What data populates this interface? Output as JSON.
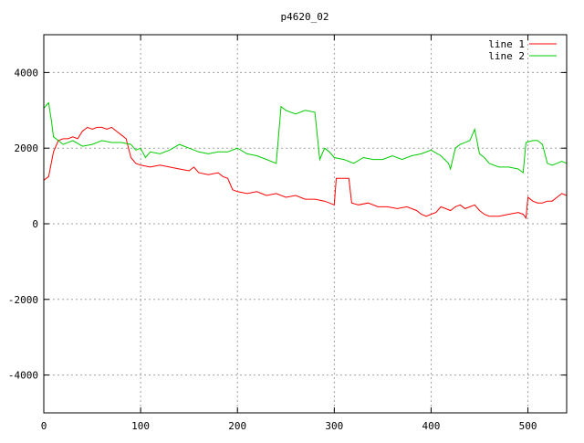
{
  "chart_data": {
    "type": "line",
    "title": "p4620_02",
    "xlabel": "",
    "ylabel": "",
    "xlim": [
      0,
      540
    ],
    "ylim": [
      -5000,
      5000
    ],
    "x_ticks": [
      0,
      100,
      200,
      300,
      400,
      500
    ],
    "y_ticks": [
      -4000,
      -2000,
      0,
      2000,
      4000
    ],
    "grid": true,
    "legend_position": "top-right",
    "series": [
      {
        "name": "line 1",
        "color": "#ff0000",
        "points": [
          [
            0,
            1150
          ],
          [
            5,
            1250
          ],
          [
            10,
            1900
          ],
          [
            15,
            2200
          ],
          [
            20,
            2250
          ],
          [
            25,
            2250
          ],
          [
            30,
            2300
          ],
          [
            35,
            2250
          ],
          [
            40,
            2450
          ],
          [
            45,
            2550
          ],
          [
            50,
            2500
          ],
          [
            55,
            2550
          ],
          [
            60,
            2550
          ],
          [
            65,
            2500
          ],
          [
            70,
            2550
          ],
          [
            75,
            2450
          ],
          [
            80,
            2350
          ],
          [
            85,
            2250
          ],
          [
            90,
            1750
          ],
          [
            95,
            1600
          ],
          [
            100,
            1550
          ],
          [
            110,
            1500
          ],
          [
            120,
            1550
          ],
          [
            130,
            1500
          ],
          [
            140,
            1450
          ],
          [
            150,
            1400
          ],
          [
            155,
            1500
          ],
          [
            160,
            1350
          ],
          [
            170,
            1300
          ],
          [
            180,
            1350
          ],
          [
            185,
            1250
          ],
          [
            190,
            1200
          ],
          [
            195,
            900
          ],
          [
            200,
            850
          ],
          [
            210,
            800
          ],
          [
            220,
            850
          ],
          [
            230,
            750
          ],
          [
            240,
            800
          ],
          [
            250,
            700
          ],
          [
            260,
            750
          ],
          [
            270,
            650
          ],
          [
            280,
            650
          ],
          [
            290,
            600
          ],
          [
            295,
            550
          ],
          [
            300,
            500
          ],
          [
            302,
            1200
          ],
          [
            310,
            1200
          ],
          [
            315,
            1200
          ],
          [
            318,
            550
          ],
          [
            325,
            500
          ],
          [
            335,
            550
          ],
          [
            345,
            450
          ],
          [
            355,
            450
          ],
          [
            365,
            400
          ],
          [
            375,
            450
          ],
          [
            385,
            350
          ],
          [
            390,
            250
          ],
          [
            395,
            200
          ],
          [
            400,
            250
          ],
          [
            405,
            300
          ],
          [
            410,
            450
          ],
          [
            415,
            400
          ],
          [
            420,
            350
          ],
          [
            425,
            450
          ],
          [
            430,
            500
          ],
          [
            435,
            400
          ],
          [
            440,
            450
          ],
          [
            445,
            500
          ],
          [
            450,
            350
          ],
          [
            455,
            250
          ],
          [
            460,
            200
          ],
          [
            470,
            200
          ],
          [
            480,
            250
          ],
          [
            490,
            300
          ],
          [
            495,
            250
          ],
          [
            498,
            150
          ],
          [
            500,
            700
          ],
          [
            505,
            600
          ],
          [
            510,
            550
          ],
          [
            515,
            550
          ],
          [
            520,
            600
          ],
          [
            525,
            600
          ],
          [
            530,
            700
          ],
          [
            535,
            800
          ],
          [
            540,
            750
          ]
        ]
      },
      {
        "name": "line 2",
        "color": "#00cc00",
        "points": [
          [
            0,
            3050
          ],
          [
            3,
            3150
          ],
          [
            5,
            3200
          ],
          [
            8,
            2700
          ],
          [
            10,
            2300
          ],
          [
            15,
            2200
          ],
          [
            20,
            2100
          ],
          [
            30,
            2200
          ],
          [
            40,
            2050
          ],
          [
            50,
            2100
          ],
          [
            60,
            2200
          ],
          [
            70,
            2150
          ],
          [
            80,
            2150
          ],
          [
            90,
            2100
          ],
          [
            95,
            1950
          ],
          [
            100,
            2000
          ],
          [
            105,
            1750
          ],
          [
            110,
            1900
          ],
          [
            120,
            1850
          ],
          [
            130,
            1950
          ],
          [
            140,
            2100
          ],
          [
            150,
            2000
          ],
          [
            160,
            1900
          ],
          [
            170,
            1850
          ],
          [
            180,
            1900
          ],
          [
            190,
            1900
          ],
          [
            200,
            2000
          ],
          [
            210,
            1850
          ],
          [
            220,
            1800
          ],
          [
            230,
            1700
          ],
          [
            240,
            1600
          ],
          [
            245,
            3100
          ],
          [
            250,
            3000
          ],
          [
            260,
            2900
          ],
          [
            270,
            3000
          ],
          [
            280,
            2950
          ],
          [
            285,
            1700
          ],
          [
            290,
            2000
          ],
          [
            295,
            1900
          ],
          [
            300,
            1750
          ],
          [
            310,
            1700
          ],
          [
            320,
            1600
          ],
          [
            330,
            1750
          ],
          [
            340,
            1700
          ],
          [
            350,
            1700
          ],
          [
            360,
            1800
          ],
          [
            370,
            1700
          ],
          [
            380,
            1800
          ],
          [
            390,
            1850
          ],
          [
            400,
            1950
          ],
          [
            410,
            1800
          ],
          [
            418,
            1600
          ],
          [
            420,
            1450
          ],
          [
            425,
            2000
          ],
          [
            430,
            2100
          ],
          [
            440,
            2200
          ],
          [
            445,
            2500
          ],
          [
            450,
            1850
          ],
          [
            455,
            1750
          ],
          [
            460,
            1600
          ],
          [
            470,
            1500
          ],
          [
            480,
            1500
          ],
          [
            490,
            1450
          ],
          [
            495,
            1350
          ],
          [
            498,
            2150
          ],
          [
            505,
            2200
          ],
          [
            510,
            2200
          ],
          [
            515,
            2100
          ],
          [
            520,
            1600
          ],
          [
            525,
            1550
          ],
          [
            530,
            1600
          ],
          [
            535,
            1650
          ],
          [
            540,
            1600
          ]
        ]
      }
    ]
  }
}
